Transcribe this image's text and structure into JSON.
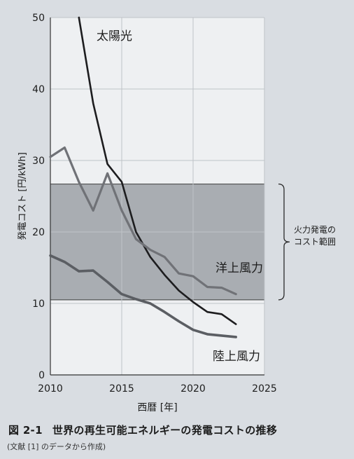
{
  "figure": {
    "number": "図 2-1",
    "title": "世界の再生可能エネルギーの発電コストの推移",
    "source": "(文献 [1] のデータから作成)"
  },
  "chart_data": {
    "type": "line",
    "xlabel": "西暦 [年]",
    "ylabel": "発電コスト [円/kWh]",
    "xlim": [
      2010,
      2025
    ],
    "ylim": [
      0,
      50
    ],
    "xticks": [
      2010,
      2015,
      2020,
      2025
    ],
    "yticks": [
      0,
      10,
      20,
      30,
      40,
      50
    ],
    "grid": true,
    "band": {
      "label_line1": "火力発電の",
      "label_line2": "コスト範囲",
      "range": [
        10.5,
        26.7
      ],
      "color": "#a9adb2"
    },
    "series": [
      {
        "name": "太陽光",
        "color": "#1d1d1f",
        "x": [
          2012,
          2013,
          2014,
          2015,
          2016,
          2017,
          2018,
          2019,
          2020,
          2021,
          2022,
          2023
        ],
        "values": [
          50,
          38,
          29.5,
          27,
          20,
          16.5,
          14,
          11.8,
          10.2,
          8.8,
          8.5,
          7.1
        ]
      },
      {
        "name": "洋上風力",
        "color": "#707277",
        "x": [
          2010,
          2011,
          2012,
          2013,
          2014,
          2015,
          2016,
          2017,
          2018,
          2019,
          2020,
          2021,
          2022,
          2023
        ],
        "values": [
          30.5,
          31.8,
          27,
          23,
          28.2,
          23,
          19,
          17.5,
          16.5,
          14.2,
          13.8,
          12.3,
          12.2,
          11.3
        ]
      },
      {
        "name": "陸上風力",
        "color": "#5b5e63",
        "x": [
          2010,
          2011,
          2012,
          2013,
          2014,
          2015,
          2016,
          2017,
          2018,
          2019,
          2020,
          2021,
          2022,
          2023
        ],
        "values": [
          16.7,
          15.8,
          14.5,
          14.6,
          13,
          11.3,
          10.6,
          10,
          8.8,
          7.5,
          6.3,
          5.7,
          5.5,
          5.3
        ]
      }
    ]
  }
}
